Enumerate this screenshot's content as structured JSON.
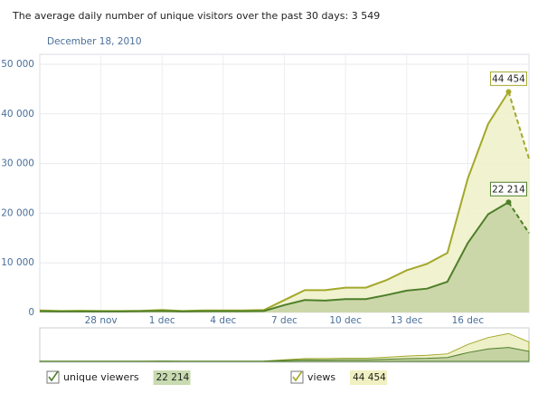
{
  "chart_data": {
    "type": "area",
    "title": "The average daily number of unique visitors over the past 30 days: 3 549",
    "subtitle": "December 18, 2010",
    "categories": [
      null,
      null,
      null,
      "28 nov",
      null,
      null,
      "1 dec",
      null,
      null,
      "4 dec",
      null,
      null,
      "7 dec",
      null,
      null,
      "10 dec",
      null,
      null,
      "13 dec",
      null,
      null,
      "16 dec",
      null,
      null,
      null
    ],
    "series": [
      {
        "name": "views",
        "color": "#a3a82a",
        "fill": "#eef0c8",
        "values": [
          400,
          300,
          350,
          300,
          300,
          350,
          500,
          300,
          400,
          400,
          400,
          500,
          2500,
          4500,
          4500,
          5000,
          5000,
          6500,
          8500,
          9800,
          12000,
          27000,
          38000,
          44454,
          31000
        ],
        "value_labels": [
          null,
          null,
          null,
          null,
          null,
          null,
          null,
          null,
          null,
          null,
          null,
          null,
          null,
          null,
          null,
          null,
          null,
          null,
          null,
          null,
          null,
          null,
          null,
          "44 454",
          null
        ]
      },
      {
        "name": "unique viewers",
        "color": "#4e7f2a",
        "fill": "#c5d2a2",
        "values": [
          250,
          200,
          200,
          200,
          200,
          250,
          300,
          200,
          250,
          250,
          250,
          300,
          1500,
          2500,
          2400,
          2700,
          2700,
          3500,
          4400,
          4800,
          6200,
          14000,
          19800,
          22214,
          16000
        ],
        "value_labels": [
          null,
          null,
          null,
          null,
          null,
          null,
          null,
          null,
          null,
          null,
          null,
          null,
          null,
          null,
          null,
          null,
          null,
          null,
          null,
          null,
          null,
          null,
          null,
          "22 214",
          null
        ]
      }
    ],
    "ylim": [
      0,
      52000
    ],
    "yticks": [
      0,
      {
        "value": 10000,
        "label": "10 000"
      },
      {
        "value": 20000,
        "label": "20 000"
      },
      {
        "value": 30000,
        "label": "30 000"
      },
      {
        "value": 40000,
        "label": "40 000"
      },
      {
        "value": 50000,
        "label": "50 000"
      }
    ],
    "grid": true
  }
}
